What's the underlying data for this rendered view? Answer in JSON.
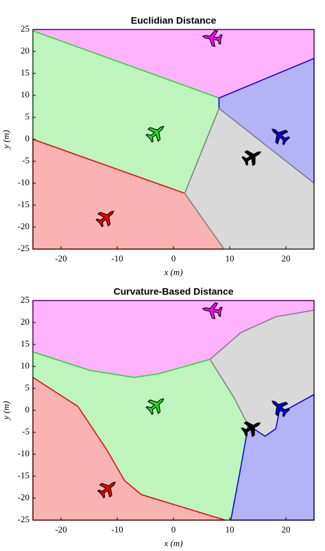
{
  "chart_data": [
    {
      "type": "region",
      "title": "Euclidian Distance",
      "xlabel": "x (m)",
      "ylabel": "y (m)",
      "xlim": [
        -25,
        25
      ],
      "ylim": [
        -25,
        25
      ],
      "xticks": [
        -20,
        -10,
        0,
        10,
        20
      ],
      "yticks": [
        -25,
        -20,
        -15,
        -10,
        -5,
        0,
        5,
        10,
        15,
        20,
        25
      ],
      "regions": [
        {
          "color": "#ff00ff",
          "x": [
            -25,
            25,
            25,
            8.1,
            -25
          ],
          "y": [
            25,
            25,
            18.4,
            9.4,
            24.7
          ]
        },
        {
          "color": "#22dd22",
          "x": [
            -25,
            8.1,
            8.1,
            2,
            -25
          ],
          "y": [
            24.7,
            9.4,
            7,
            -12.3,
            0
          ]
        },
        {
          "color": "#ee0000",
          "x": [
            -25,
            2,
            9,
            -25
          ],
          "y": [
            0,
            -12.3,
            -25,
            -25
          ]
        },
        {
          "color": "#0000dd",
          "x": [
            8.1,
            25,
            25,
            8.1
          ],
          "y": [
            9.4,
            18.4,
            -10,
            7
          ]
        },
        {
          "color": "#808080",
          "x": [
            8.1,
            25,
            25,
            9,
            2
          ],
          "y": [
            7,
            -10,
            -25,
            -25,
            -12.3
          ]
        }
      ],
      "aircraft": [
        {
          "color": "#ff00ff",
          "x": 6.8,
          "y": 23.1,
          "heading": 170
        },
        {
          "color": "#22dd22",
          "x": -3,
          "y": 1.6,
          "heading": 40
        },
        {
          "color": "#0000dd",
          "x": 18.8,
          "y": 1,
          "heading": 140
        },
        {
          "color": "#000000",
          "x": 14.1,
          "y": -3.9,
          "heading": 30
        },
        {
          "color": "#ee0000",
          "x": -11.9,
          "y": -17.7,
          "heading": 40
        }
      ]
    },
    {
      "type": "region",
      "title": "Curvature-Based Distance",
      "xlabel": "x (m)",
      "ylabel": "y (m)",
      "xlim": [
        -25,
        25
      ],
      "ylim": [
        -25,
        25
      ],
      "xticks": [
        -20,
        -10,
        0,
        10,
        20
      ],
      "yticks": [
        -25,
        -20,
        -15,
        -10,
        -5,
        0,
        5,
        10,
        15,
        20,
        25
      ],
      "regions": [
        {
          "color": "#ff00ff",
          "x": [
            -25,
            25,
            25,
            18.2,
            12,
            6.5,
            -2.7,
            -7,
            -14.9,
            -25
          ],
          "y": [
            25,
            25,
            22.8,
            21.3,
            17.7,
            11.6,
            8.3,
            7.5,
            9.1,
            13.3
          ]
        },
        {
          "color": "#22dd22",
          "x": [
            -25,
            -14.9,
            -7,
            -2.7,
            6.5,
            10.8,
            13.3,
            12,
            10.2,
            9.2,
            -5.7,
            -8.7,
            -11.9,
            -17,
            -25
          ],
          "y": [
            13.3,
            9.1,
            7.5,
            8.3,
            11.6,
            2.8,
            -3.4,
            -12.8,
            -25,
            -25,
            -19.2,
            -16,
            -8.9,
            0.9,
            7.5
          ]
        },
        {
          "color": "#ee0000",
          "x": [
            -25,
            -17,
            -11.9,
            -8.7,
            -5.7,
            9.2,
            -25
          ],
          "y": [
            7.5,
            0.9,
            -8.9,
            -16,
            -19.2,
            -25,
            -25
          ]
        },
        {
          "color": "#808080",
          "x": [
            6.5,
            12,
            18.2,
            25,
            25,
            20.6,
            18.8,
            18.2,
            16.3,
            13.3,
            10.8
          ],
          "y": [
            11.6,
            17.7,
            21.3,
            22.8,
            3.6,
            0.5,
            -0.3,
            -4.2,
            -5.9,
            -3.4,
            2.8
          ]
        },
        {
          "color": "#0000dd",
          "x": [
            13.3,
            16.3,
            18.2,
            18.8,
            20.6,
            25,
            25,
            10.2,
            12
          ],
          "y": [
            -3.4,
            -5.9,
            -4.2,
            -0.3,
            0.5,
            3.6,
            -25,
            -25,
            -12.8
          ]
        }
      ],
      "aircraft": [
        {
          "color": "#ff00ff",
          "x": 6.8,
          "y": 22.8,
          "heading": 170
        },
        {
          "color": "#22dd22",
          "x": -3,
          "y": 1.3,
          "heading": 40
        },
        {
          "color": "#0000dd",
          "x": 18.8,
          "y": 0.8,
          "heading": 140
        },
        {
          "color": "#000000",
          "x": 14,
          "y": -3.9,
          "heading": 30
        },
        {
          "color": "#ee0000",
          "x": -11.6,
          "y": -17.7,
          "heading": 40
        }
      ]
    }
  ]
}
